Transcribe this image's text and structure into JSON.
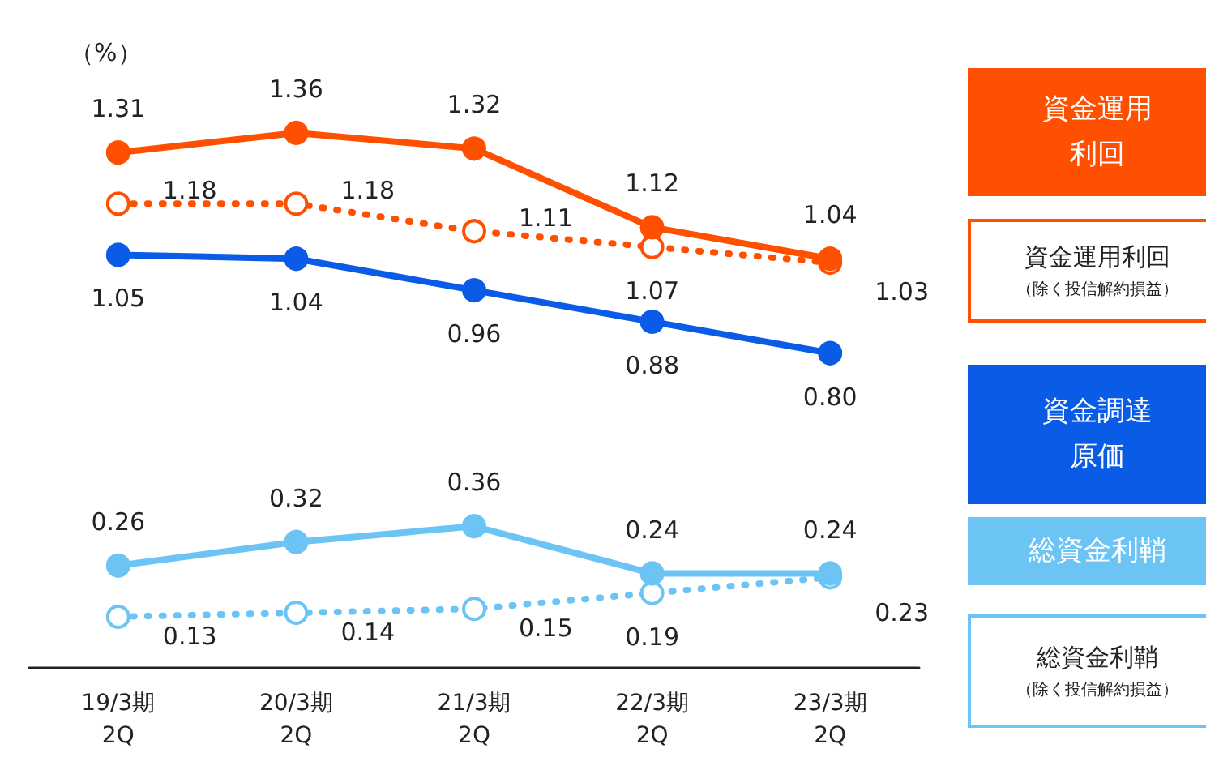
{
  "chart_data": {
    "type": "line",
    "ylabel": "（%）",
    "categories": [
      "19/3期\n2Q",
      "20/3期\n2Q",
      "21/3期\n2Q",
      "22/3期\n2Q",
      "23/3期\n2Q"
    ],
    "series": [
      {
        "name": "資金運用利回",
        "color": "#ff4f00",
        "values": [
          1.31,
          1.36,
          1.32,
          1.12,
          1.04
        ],
        "value_labels": [
          "1.31",
          "1.36",
          "1.32",
          "1.12",
          "1.04"
        ]
      },
      {
        "name": "資金運用利回（除く投信解約損益）",
        "color": "#ff4f00",
        "line_style": "dotted",
        "values": [
          1.18,
          1.18,
          1.11,
          1.07,
          1.03
        ],
        "value_labels": [
          "1.18",
          "1.18",
          "1.11",
          "1.07",
          "1.03"
        ]
      },
      {
        "name": "資金調達原価",
        "color": "#0a5ce6",
        "values": [
          1.05,
          1.04,
          0.96,
          0.88,
          0.8
        ],
        "value_labels": [
          "1.05",
          "1.04",
          "0.96",
          "0.88",
          "0.80"
        ]
      },
      {
        "name": "総資金利鞘",
        "color": "#6cc4f5",
        "values": [
          0.26,
          0.32,
          0.36,
          0.24,
          0.24
        ],
        "value_labels": [
          "0.26",
          "0.32",
          "0.36",
          "0.24",
          "0.24"
        ]
      },
      {
        "name": "総資金利鞘（除く投信解約損益）",
        "color": "#6cc4f5",
        "line_style": "dotted",
        "values": [
          0.13,
          0.14,
          0.15,
          0.19,
          0.23
        ],
        "value_labels": [
          "0.13",
          "0.14",
          "0.15",
          "0.19",
          "0.23"
        ]
      }
    ],
    "marker": "circle",
    "line_style": "solid",
    "grid": false,
    "legend": "right"
  }
}
